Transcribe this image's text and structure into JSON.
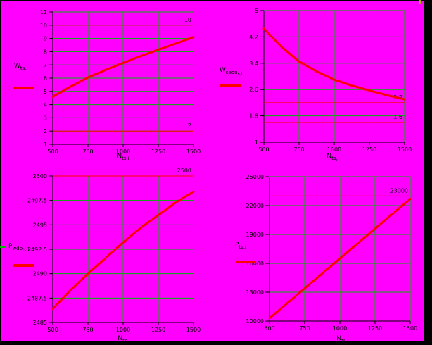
{
  "colors": {
    "background": "#ff00ff",
    "frame": "#000000",
    "grid": "#00b400",
    "trace": "#ff0000",
    "marker": "#ff0000",
    "axis": "#000000",
    "text": "#000000",
    "artifact_yellow": "#a8a800"
  },
  "chart_data": [
    {
      "name": "top-left",
      "type": "line",
      "title": "",
      "legend_main": "W",
      "legend_sub": "ts,i",
      "legend_sub2": "",
      "xlabel_main": "N",
      "xlabel_sub": "ts,i",
      "xlim": [
        500,
        1500
      ],
      "ylim": [
        1,
        11
      ],
      "grid": true,
      "legend_position": "left-middle",
      "xticks": [
        500,
        750,
        1000,
        1250,
        1500
      ],
      "xtick_labels": [
        "500",
        "750",
        "1000",
        "1250",
        "1500"
      ],
      "yticks": [
        11,
        10,
        9,
        8,
        7,
        6,
        5,
        4,
        3,
        2,
        1
      ],
      "ytick_labels": [
        "11",
        "10",
        "9",
        "8",
        "7",
        "6",
        "5",
        "4",
        "3",
        "2",
        "1"
      ],
      "markers": [
        {
          "value": 10,
          "label": "10"
        },
        {
          "value": 2,
          "label": "2"
        }
      ],
      "series": [
        {
          "name": "trace-1",
          "x": [
            500,
            625,
            750,
            875,
            1000,
            1125,
            1250,
            1375,
            1500
          ],
          "y": [
            4.6,
            5.35,
            6.05,
            6.62,
            7.15,
            7.67,
            8.15,
            8.62,
            9.1
          ]
        }
      ]
    },
    {
      "name": "top-right",
      "type": "line",
      "title": "",
      "legend_main": "W",
      "legend_sub": "seon",
      "legend_sub2": "s,i",
      "xlabel_main": "N",
      "xlabel_sub": "ts,i",
      "xlim": [
        500,
        1500
      ],
      "ylim": [
        1,
        5
      ],
      "grid": true,
      "legend_position": "left-middle",
      "xticks": [
        500,
        750,
        1000,
        1250,
        1500
      ],
      "xtick_labels": [
        "500",
        "750",
        "1000",
        "1250",
        "1500"
      ],
      "yticks": [
        5,
        4.2,
        3.4,
        2.6,
        1.8,
        1
      ],
      "ytick_labels": [
        "5",
        "4.2",
        "3.4",
        "2.6",
        "1.8",
        "1"
      ],
      "markers": [
        {
          "value": 2.2,
          "label": "2.2"
        },
        {
          "value": 1.6,
          "label": "1.6"
        }
      ],
      "series": [
        {
          "name": "trace-1",
          "x": [
            500,
            625,
            750,
            875,
            1000,
            1125,
            1250,
            1375,
            1500
          ],
          "y": [
            4.45,
            3.9,
            3.45,
            3.15,
            2.9,
            2.72,
            2.57,
            2.43,
            2.3
          ]
        }
      ]
    },
    {
      "name": "bottom-left",
      "type": "line",
      "title": "",
      "legend_main": "P",
      "legend_sub": "wdb",
      "legend_sub2": "ts,i",
      "xlabel_main": "N",
      "xlabel_sub": "ts,i",
      "xlim": [
        500,
        1500
      ],
      "ylim": [
        2485,
        2500
      ],
      "grid": true,
      "legend_position": "left-middle",
      "xticks": [
        500,
        750,
        1000,
        1250,
        1500
      ],
      "xtick_labels": [
        "500",
        "750",
        "1000",
        "1250",
        "1500"
      ],
      "yticks": [
        2500,
        2497.5,
        2495,
        2492.5,
        2490,
        2487.5,
        2485
      ],
      "ytick_labels": [
        "2500",
        "2497.5",
        "2495",
        "2492.5",
        "2490",
        "2487.5",
        "2485"
      ],
      "markers": [
        {
          "value": 2500,
          "label": "2500"
        }
      ],
      "series": [
        {
          "name": "trace-1",
          "x": [
            500,
            625,
            750,
            875,
            1000,
            1125,
            1250,
            1375,
            1500
          ],
          "y": [
            2486.4,
            2488.3,
            2490.0,
            2491.6,
            2493.2,
            2494.7,
            2496.0,
            2497.3,
            2498.4
          ]
        }
      ]
    },
    {
      "name": "bottom-right",
      "type": "line",
      "title": "",
      "legend_main": "P",
      "legend_sub": "ts,i",
      "legend_sub2": "",
      "xlabel_main": "N",
      "xlabel_sub": "ts,i",
      "xlim": [
        500,
        1500
      ],
      "ylim": [
        10000,
        25000
      ],
      "grid": true,
      "legend_position": "left-middle",
      "xticks": [
        500,
        750,
        1000,
        1250,
        1500
      ],
      "xtick_labels": [
        "500",
        "750",
        "1000",
        "1250",
        "1500"
      ],
      "yticks": [
        25000,
        22000,
        19000,
        16000,
        13000,
        10000
      ],
      "ytick_labels": [
        "25000",
        "22000",
        "19000",
        "16000",
        "13000",
        "10000"
      ],
      "markers": [
        {
          "value": 23000,
          "label": "23000"
        }
      ],
      "series": [
        {
          "name": "trace-1",
          "x": [
            500,
            625,
            750,
            875,
            1000,
            1125,
            1250,
            1375,
            1500
          ],
          "y": [
            10300,
            11850,
            13400,
            14950,
            16500,
            18050,
            19600,
            21150,
            22700
          ]
        }
      ]
    }
  ]
}
